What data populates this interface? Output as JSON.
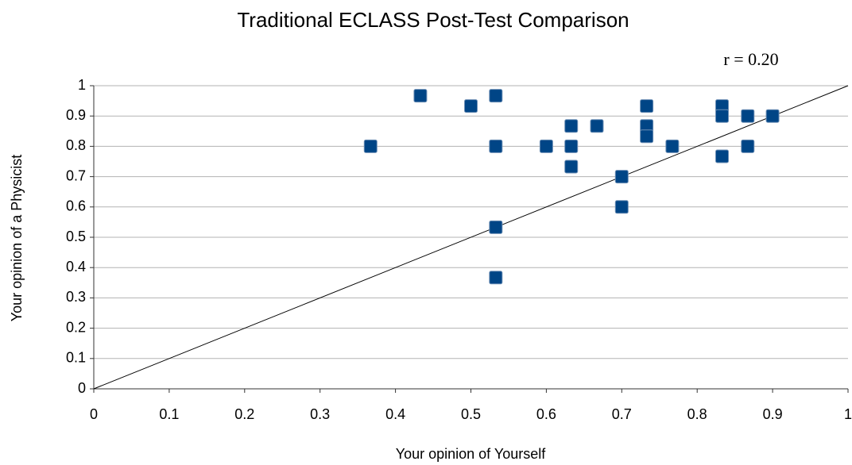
{
  "chart_data": {
    "type": "scatter",
    "title": "Traditional ECLASS Post-Test Comparison",
    "annotation": "r = 0.20",
    "x_label": "Your opinion of Yourself",
    "y_label": "Your opinion of a Physicist",
    "x": [
      0.367,
      0.433,
      0.5,
      0.533,
      0.533,
      0.533,
      0.533,
      0.6,
      0.633,
      0.633,
      0.633,
      0.667,
      0.7,
      0.7,
      0.733,
      0.733,
      0.733,
      0.767,
      0.833,
      0.833,
      0.833,
      0.867,
      0.867,
      0.9
    ],
    "values": [
      0.8,
      0.967,
      0.933,
      0.967,
      0.8,
      0.533,
      0.367,
      0.8,
      0.867,
      0.8,
      0.733,
      0.867,
      0.7,
      0.6,
      0.933,
      0.867,
      0.833,
      0.8,
      0.933,
      0.9,
      0.767,
      0.9,
      0.8,
      0.9
    ],
    "color": "#004586",
    "xlim": [
      0,
      1
    ],
    "ylim": [
      0,
      1
    ],
    "xticks": [
      0,
      0.1,
      0.2,
      0.3,
      0.4,
      0.5,
      0.6,
      0.7,
      0.8,
      0.9,
      1
    ],
    "yticks": [
      0,
      0.1,
      0.2,
      0.3,
      0.4,
      0.5,
      0.6,
      0.7,
      0.8,
      0.9,
      1
    ],
    "grid": true
  }
}
